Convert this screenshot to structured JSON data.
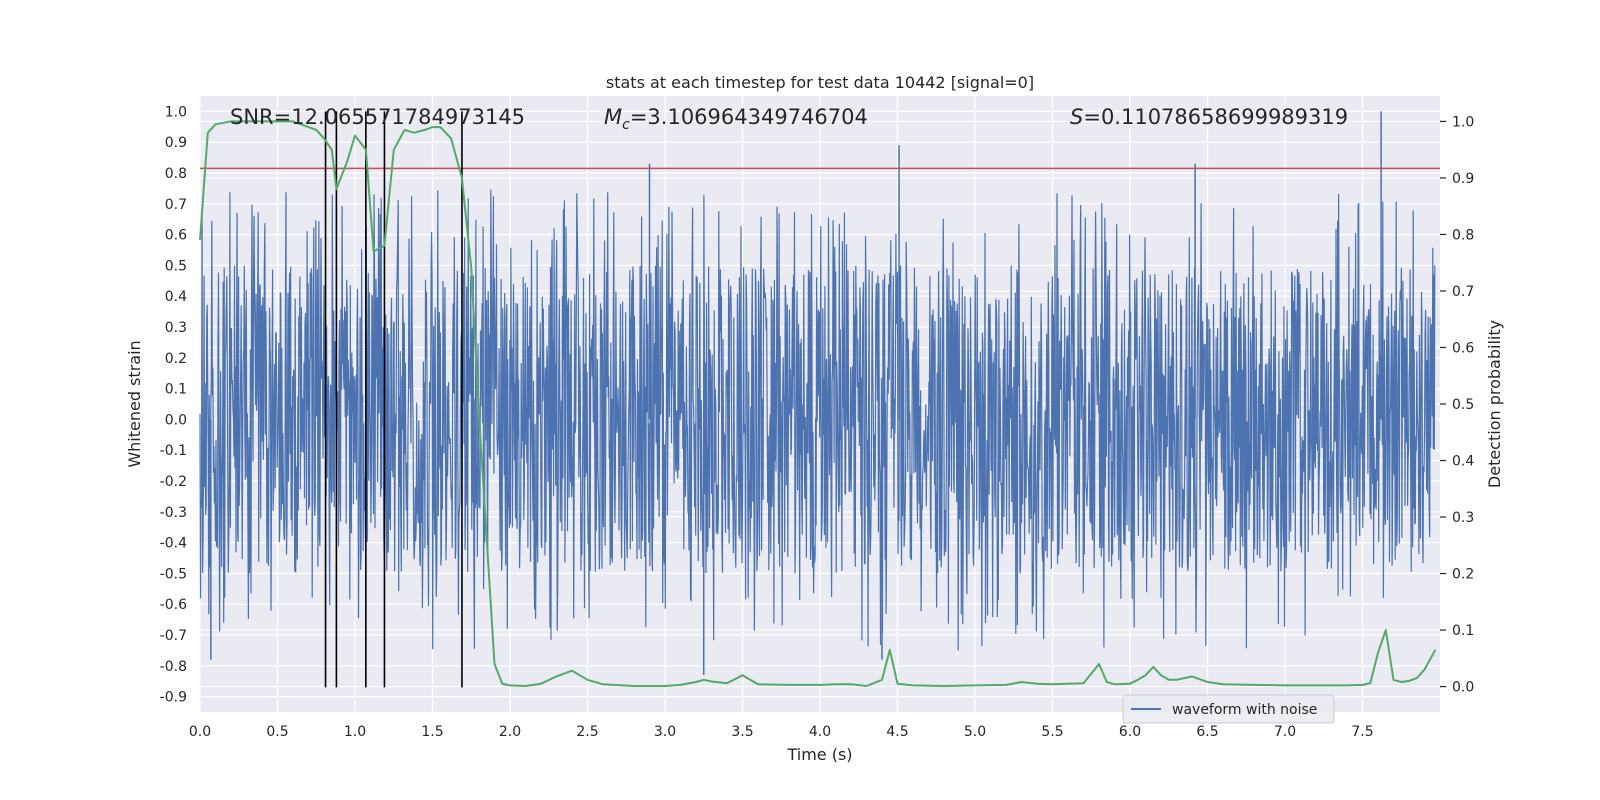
{
  "chart_data": {
    "type": "line",
    "title": "stats at each timestep for test data 10442 [signal=0]",
    "xlabel": "Time (s)",
    "ylabel_left": "Whitened strain",
    "ylabel_right": "Detection probability",
    "xlim": [
      0.0,
      8.0
    ],
    "ylim_left": [
      -0.95,
      1.05
    ],
    "ylim_right": [
      -0.045,
      1.045
    ],
    "xticks": [
      0.0,
      0.5,
      1.0,
      1.5,
      2.0,
      2.5,
      3.0,
      3.5,
      4.0,
      4.5,
      5.0,
      5.5,
      6.0,
      6.5,
      7.0,
      7.5
    ],
    "xtick_labels": [
      "0.0",
      "0.5",
      "1.0",
      "1.5",
      "2.0",
      "2.5",
      "3.0",
      "3.5",
      "4.0",
      "4.5",
      "5.0",
      "5.5",
      "6.0",
      "6.5",
      "7.0",
      "7.5"
    ],
    "yticks_left": [
      1.0,
      0.9,
      0.8,
      0.7,
      0.6,
      0.5,
      0.4,
      0.3,
      0.2,
      0.1,
      0.0,
      -0.1,
      -0.2,
      -0.3,
      -0.4,
      -0.5,
      -0.6,
      -0.7,
      -0.8,
      -0.9
    ],
    "ytick_labels_left": [
      "1.0",
      "0.9",
      "0.8",
      "0.7",
      "0.6",
      "0.5",
      "0.4",
      "0.3",
      "0.2",
      "0.1",
      "0.0",
      "-0.1",
      "-0.2",
      "-0.3",
      "-0.4",
      "-0.5",
      "-0.6",
      "-0.7",
      "-0.8",
      "-0.9"
    ],
    "yticks_right": [
      1.0,
      0.9,
      0.8,
      0.7,
      0.6,
      0.5,
      0.4,
      0.3,
      0.2,
      0.1,
      0.0
    ],
    "ytick_labels_right": [
      "1.0",
      "0.9",
      "0.8",
      "0.7",
      "0.6",
      "0.5",
      "0.4",
      "0.3",
      "0.2",
      "0.1",
      "0.0"
    ],
    "annotations": {
      "snr": "SNR=12.065571784973145",
      "mc_symbol": "M",
      "mc_sub": "c",
      "mc_value": "=3.106964349746704",
      "s_symbol": "S",
      "s_value": "=0.11078658699989319"
    },
    "threshold_line": {
      "y": 0.815,
      "axis": "left",
      "color": "#c44e52"
    },
    "vertical_lines_x": [
      0.81,
      0.88,
      1.07,
      1.19,
      1.69
    ],
    "vertical_lines_range": [
      -0.87,
      1.0
    ],
    "series": [
      {
        "name": "waveform with noise",
        "axis": "left",
        "color": "#4c72b0",
        "kind": "noise",
        "n_samples": 2400,
        "typical_range": [
          -0.5,
          0.5
        ],
        "notable_spikes": [
          {
            "x": 4.51,
            "y": 0.89
          },
          {
            "x": 7.62,
            "y": 1.0
          },
          {
            "x": 2.9,
            "y": 0.83
          },
          {
            "x": 6.42,
            "y": 0.83
          },
          {
            "x": 3.25,
            "y": -0.83
          },
          {
            "x": 4.4,
            "y": -0.78
          },
          {
            "x": 0.07,
            "y": -0.78
          }
        ]
      },
      {
        "name": "detection probability",
        "axis": "right",
        "color": "#55a868",
        "x": [
          0.0,
          0.05,
          0.1,
          0.2,
          0.3,
          0.4,
          0.5,
          0.6,
          0.7,
          0.75,
          0.8,
          0.85,
          0.88,
          0.95,
          1.0,
          1.07,
          1.12,
          1.19,
          1.25,
          1.32,
          1.38,
          1.45,
          1.5,
          1.55,
          1.62,
          1.69,
          1.75,
          1.8,
          1.9,
          1.95,
          2.0,
          2.1,
          2.2,
          2.3,
          2.4,
          2.5,
          2.6,
          2.8,
          3.0,
          3.1,
          3.2,
          3.25,
          3.3,
          3.4,
          3.5,
          3.6,
          3.8,
          4.0,
          4.1,
          4.2,
          4.3,
          4.4,
          4.45,
          4.5,
          4.6,
          4.8,
          5.0,
          5.2,
          5.3,
          5.4,
          5.5,
          5.6,
          5.7,
          5.8,
          5.85,
          5.9,
          6.0,
          6.05,
          6.1,
          6.15,
          6.2,
          6.25,
          6.3,
          6.4,
          6.5,
          6.6,
          6.8,
          7.0,
          7.2,
          7.4,
          7.5,
          7.55,
          7.6,
          7.65,
          7.7,
          7.75,
          7.8,
          7.85,
          7.9,
          7.97
        ],
        "y": [
          0.79,
          0.98,
          0.995,
          1.0,
          1.0,
          1.0,
          1.0,
          1.0,
          0.99,
          0.985,
          0.97,
          0.95,
          0.88,
          0.93,
          0.975,
          0.95,
          0.77,
          0.78,
          0.95,
          0.985,
          0.98,
          0.985,
          0.99,
          0.99,
          0.97,
          0.9,
          0.74,
          0.48,
          0.04,
          0.005,
          0.002,
          0.001,
          0.005,
          0.018,
          0.028,
          0.012,
          0.004,
          0.001,
          0.001,
          0.003,
          0.008,
          0.012,
          0.009,
          0.006,
          0.02,
          0.004,
          0.003,
          0.003,
          0.004,
          0.004,
          0.001,
          0.012,
          0.065,
          0.005,
          0.002,
          0.001,
          0.002,
          0.003,
          0.008,
          0.005,
          0.004,
          0.005,
          0.006,
          0.04,
          0.008,
          0.004,
          0.005,
          0.012,
          0.02,
          0.035,
          0.02,
          0.012,
          0.012,
          0.018,
          0.008,
          0.004,
          0.003,
          0.002,
          0.002,
          0.002,
          0.003,
          0.006,
          0.06,
          0.1,
          0.012,
          0.008,
          0.01,
          0.015,
          0.03,
          0.065
        ]
      }
    ],
    "legend": {
      "position": "lower-right",
      "entries": [
        "waveform with noise"
      ]
    }
  }
}
